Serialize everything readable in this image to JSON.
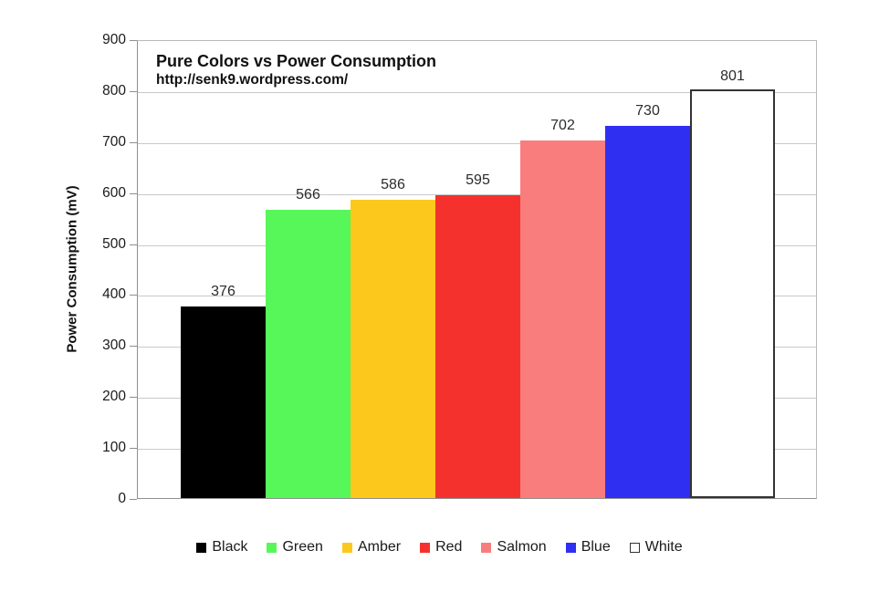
{
  "page": {
    "background": "#ffffff"
  },
  "chart_data": {
    "type": "bar",
    "title": "Pure Colors vs Power Consumption",
    "subtitle": "http://senk9.wordpress.com/",
    "ylabel": "Power Consumption (mV)",
    "xlabel": "",
    "categories": [
      "Black",
      "Green",
      "Amber",
      "Red",
      "Salmon",
      "Blue",
      "White"
    ],
    "values": [
      376,
      566,
      586,
      595,
      702,
      730,
      801
    ],
    "bar_colors": [
      "#000000",
      "#57f75a",
      "#fcc81c",
      "#f5312e",
      "#f97d7c",
      "#2f2ff2",
      "#ffffff"
    ],
    "bar_borders": [
      "none",
      "none",
      "none",
      "none",
      "none",
      "none",
      "#333333"
    ],
    "ylim": [
      0,
      900
    ],
    "yticks": [
      0,
      100,
      200,
      300,
      400,
      500,
      600,
      700,
      800,
      900
    ],
    "grid": "horizontal",
    "legend_position": "bottom"
  }
}
